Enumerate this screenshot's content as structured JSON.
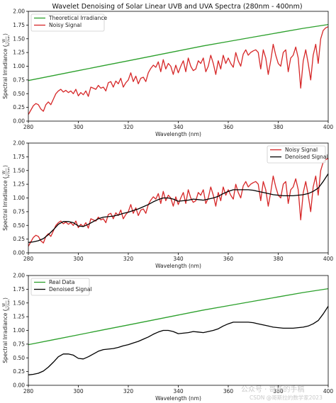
{
  "title": "Wavelet Denoising of Solar Linear UVB and UVA Spectra (280nm - 400nm)",
  "watermark": {
    "line1": "公众号 · 哥斯的手稿",
    "line2": "CSDN @哥斯拉的数学家2023"
  },
  "colors": {
    "theoretical": "#2ca02c",
    "noisy": "#d62728",
    "denoised": "#000000"
  },
  "chart_data": [
    {
      "type": "line",
      "xlabel": "Wavelength (nm)",
      "ylabel": "Spectral Irradiance (W/m²/nm)",
      "ylabel_parts": {
        "main": "Spectral Irradiance",
        "num": "W",
        "den": "m²/nm"
      },
      "xlim": [
        280,
        400
      ],
      "ylim": [
        0,
        2.0
      ],
      "xticks": [
        "280",
        "300",
        "320",
        "340",
        "360",
        "380",
        "400"
      ],
      "yticks": [
        "0.00",
        "0.25",
        "0.50",
        "0.75",
        "1.00",
        "1.25",
        "1.50",
        "1.75",
        "2.00"
      ],
      "legend_position": "top-left",
      "series": [
        {
          "name": "Theoretical Irradiance",
          "color": "#2ca02c",
          "x": [
            280,
            290,
            300,
            310,
            320,
            330,
            340,
            350,
            360,
            370,
            380,
            390,
            400
          ],
          "y": [
            0.74,
            0.83,
            0.92,
            1.01,
            1.1,
            1.19,
            1.28,
            1.37,
            1.45,
            1.53,
            1.61,
            1.69,
            1.76
          ]
        },
        {
          "name": "Noisy Signal",
          "color": "#d62728",
          "x": [
            280,
            281,
            282,
            283,
            284,
            285,
            286,
            287,
            288,
            289,
            290,
            291,
            292,
            293,
            294,
            295,
            296,
            297,
            298,
            299,
            300,
            301,
            302,
            303,
            304,
            305,
            306,
            307,
            308,
            309,
            310,
            311,
            312,
            313,
            314,
            315,
            316,
            317,
            318,
            319,
            320,
            321,
            322,
            323,
            324,
            325,
            326,
            327,
            328,
            329,
            330,
            331,
            332,
            333,
            334,
            335,
            336,
            337,
            338,
            339,
            340,
            341,
            342,
            343,
            344,
            345,
            346,
            347,
            348,
            349,
            350,
            351,
            352,
            353,
            354,
            355,
            356,
            357,
            358,
            359,
            360,
            361,
            362,
            363,
            364,
            365,
            366,
            367,
            368,
            369,
            370,
            371,
            372,
            373,
            374,
            375,
            376,
            377,
            378,
            379,
            380,
            381,
            382,
            383,
            384,
            385,
            386,
            387,
            388,
            389,
            390,
            391,
            392,
            393,
            394,
            395,
            396,
            397,
            398,
            399,
            400
          ],
          "y": [
            0.12,
            0.2,
            0.28,
            0.32,
            0.3,
            0.22,
            0.18,
            0.3,
            0.35,
            0.3,
            0.4,
            0.5,
            0.55,
            0.58,
            0.53,
            0.56,
            0.52,
            0.55,
            0.5,
            0.58,
            0.46,
            0.52,
            0.48,
            0.55,
            0.45,
            0.62,
            0.6,
            0.58,
            0.65,
            0.6,
            0.62,
            0.55,
            0.7,
            0.72,
            0.62,
            0.73,
            0.68,
            0.78,
            0.62,
            0.7,
            0.75,
            0.88,
            0.72,
            0.82,
            0.68,
            0.78,
            0.8,
            0.72,
            0.88,
            0.96,
            1.02,
            0.98,
            1.08,
            0.9,
            1.12,
            0.95,
            1.05,
            1.0,
            0.85,
            1.02,
            0.88,
            1.0,
            1.1,
            0.9,
            1.15,
            1.0,
            0.92,
            0.95,
            1.1,
            1.05,
            1.15,
            0.9,
            1.0,
            1.2,
            1.05,
            0.85,
            1.1,
            0.95,
            1.2,
            1.05,
            1.15,
            1.05,
            0.98,
            1.25,
            1.1,
            1.0,
            1.22,
            1.3,
            1.2,
            1.25,
            1.28,
            1.3,
            1.25,
            0.95,
            1.3,
            1.15,
            0.85,
            1.1,
            1.4,
            1.2,
            1.05,
            1.0,
            1.25,
            1.3,
            0.9,
            1.15,
            1.2,
            1.35,
            1.15,
            0.6,
            1.1,
            1.3,
            1.05,
            0.75,
            1.2,
            1.4,
            1.05,
            1.5,
            1.65,
            1.7,
            1.72
          ]
        },
        {
          "name": "Denoised Signal",
          "color": "#000000",
          "x": [
            280,
            282,
            284,
            286,
            288,
            290,
            292,
            294,
            296,
            298,
            300,
            302,
            304,
            306,
            308,
            310,
            312,
            314,
            316,
            318,
            320,
            322,
            324,
            326,
            328,
            330,
            332,
            334,
            336,
            338,
            340,
            342,
            344,
            346,
            348,
            350,
            352,
            354,
            356,
            358,
            360,
            362,
            364,
            366,
            368,
            370,
            372,
            374,
            376,
            378,
            380,
            382,
            384,
            386,
            388,
            390,
            392,
            394,
            396,
            398,
            400
          ],
          "y": [
            0.19,
            0.2,
            0.22,
            0.26,
            0.33,
            0.42,
            0.52,
            0.57,
            0.57,
            0.55,
            0.49,
            0.48,
            0.52,
            0.57,
            0.62,
            0.65,
            0.66,
            0.67,
            0.69,
            0.72,
            0.74,
            0.77,
            0.8,
            0.84,
            0.88,
            0.93,
            0.97,
            1.0,
            1.0,
            0.98,
            0.94,
            0.95,
            0.96,
            0.98,
            0.97,
            0.96,
            0.98,
            1.0,
            1.03,
            1.08,
            1.12,
            1.15,
            1.15,
            1.15,
            1.15,
            1.14,
            1.12,
            1.1,
            1.08,
            1.06,
            1.05,
            1.04,
            1.04,
            1.04,
            1.05,
            1.06,
            1.08,
            1.12,
            1.18,
            1.3,
            1.44
          ]
        }
      ]
    },
    {
      "type": "line",
      "xlabel": "Wavelength (nm)",
      "ylabel": "Spectral Irradiance (W/m²/nm)",
      "ylabel_parts": {
        "main": "Spectral Irradiance",
        "num": "W",
        "den": "m²/nm"
      },
      "xlim": [
        280,
        400
      ],
      "ylim": [
        0,
        2.0
      ],
      "xticks": [
        "280",
        "300",
        "320",
        "340",
        "360",
        "380",
        "400"
      ],
      "yticks": [
        "0.00",
        "0.25",
        "0.50",
        "0.75",
        "1.00",
        "1.25",
        "1.50",
        "1.75",
        "2.00"
      ],
      "legend_position": "top-right",
      "series_refs": [
        "Noisy Signal",
        "Denoised Signal"
      ]
    },
    {
      "type": "line",
      "xlabel": "Wavelength (nm)",
      "ylabel": "Spectral Irradiance (W/m²/nm)",
      "ylabel_parts": {
        "main": "Spectral Irradiance",
        "num": "W",
        "den": "m²/nm"
      },
      "xlim": [
        280,
        400
      ],
      "ylim": [
        0,
        2.0
      ],
      "xticks": [
        "280",
        "300",
        "320",
        "340",
        "360",
        "380",
        "400"
      ],
      "yticks": [
        "0.00",
        "0.25",
        "0.50",
        "0.75",
        "1.00",
        "1.25",
        "1.50",
        "1.75",
        "2.00"
      ],
      "legend_position": "top-left",
      "series_refs": [
        "Real Data",
        "Denoised Signal"
      ],
      "series_name_overrides": {
        "Theoretical Irradiance": "Real Data"
      }
    }
  ]
}
